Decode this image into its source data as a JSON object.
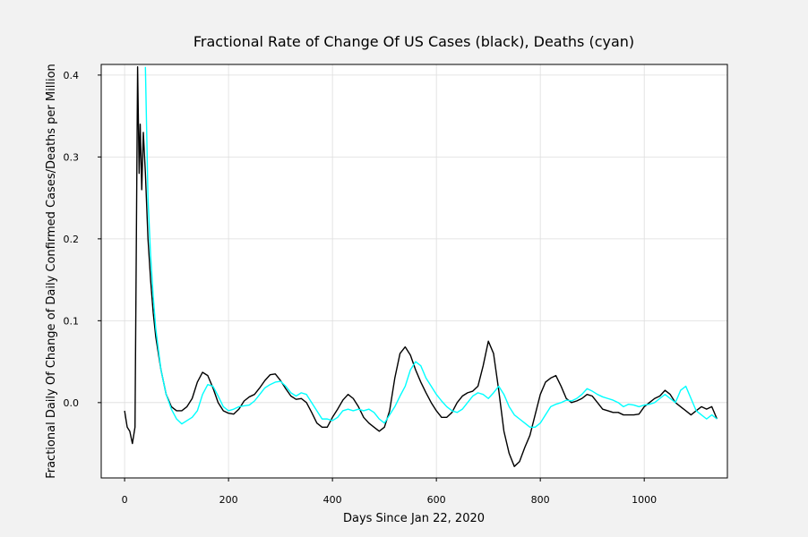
{
  "chart_data": {
    "type": "line",
    "title": "Fractional Rate of Change Of US Cases (black), Deaths (cyan)",
    "x_label": "Days Since Jan 22, 2020",
    "y_label": "Fractional Daily Of Change of Daily Confirmed Cases/Deaths per Million",
    "xlim": [
      -45,
      1160
    ],
    "ylim": [
      -0.092,
      0.413
    ],
    "xticks": [
      0,
      200,
      400,
      600,
      800,
      1000
    ],
    "yticks": [
      {
        "value": 0,
        "label": "0.0"
      },
      0.1,
      0.2,
      0.3,
      0.4
    ],
    "grid": true,
    "x": [
      0,
      5,
      10,
      15,
      20,
      25,
      28,
      30,
      33,
      36,
      40,
      45,
      50,
      55,
      60,
      70,
      80,
      90,
      100,
      110,
      120,
      130,
      140,
      150,
      160,
      170,
      180,
      190,
      200,
      210,
      220,
      230,
      240,
      250,
      260,
      270,
      280,
      290,
      300,
      310,
      320,
      330,
      340,
      350,
      360,
      370,
      380,
      390,
      400,
      410,
      420,
      430,
      440,
      450,
      460,
      470,
      480,
      490,
      500,
      510,
      520,
      530,
      540,
      550,
      560,
      570,
      580,
      590,
      600,
      610,
      620,
      630,
      640,
      650,
      660,
      670,
      680,
      690,
      700,
      710,
      720,
      730,
      740,
      750,
      760,
      770,
      780,
      790,
      800,
      810,
      820,
      830,
      840,
      850,
      860,
      870,
      880,
      890,
      900,
      910,
      920,
      930,
      940,
      950,
      960,
      970,
      980,
      990,
      1000,
      1010,
      1020,
      1030,
      1040,
      1050,
      1060,
      1070,
      1080,
      1090,
      1100,
      1110,
      1120,
      1130,
      1140
    ],
    "series": [
      {
        "color": "#000000",
        "values": [
          -0.01,
          -0.03,
          -0.035,
          -0.05,
          -0.03,
          0.41,
          0.28,
          0.34,
          0.26,
          0.33,
          0.28,
          0.2,
          0.15,
          0.11,
          0.08,
          0.04,
          0.01,
          -0.005,
          -0.01,
          -0.01,
          -0.005,
          0.005,
          0.025,
          0.037,
          0.033,
          0.018,
          0.0,
          -0.01,
          -0.013,
          -0.014,
          -0.008,
          0.002,
          0.007,
          0.01,
          0.018,
          0.027,
          0.034,
          0.035,
          0.027,
          0.017,
          0.008,
          0.004,
          0.005,
          0.0,
          -0.012,
          -0.025,
          -0.03,
          -0.03,
          -0.018,
          -0.008,
          0.003,
          0.01,
          0.005,
          -0.005,
          -0.018,
          -0.025,
          -0.03,
          -0.035,
          -0.03,
          -0.01,
          0.03,
          0.06,
          0.068,
          0.058,
          0.04,
          0.025,
          0.012,
          0.0,
          -0.01,
          -0.018,
          -0.018,
          -0.012,
          0.0,
          0.008,
          0.012,
          0.014,
          0.02,
          0.045,
          0.075,
          0.06,
          0.015,
          -0.035,
          -0.062,
          -0.078,
          -0.072,
          -0.055,
          -0.04,
          -0.015,
          0.01,
          0.025,
          0.03,
          0.033,
          0.02,
          0.005,
          0.0,
          0.002,
          0.005,
          0.01,
          0.008,
          0.0,
          -0.008,
          -0.01,
          -0.012,
          -0.012,
          -0.015,
          -0.015,
          -0.015,
          -0.014,
          -0.005,
          0.0,
          0.005,
          0.008,
          0.015,
          0.01,
          0.0,
          -0.005,
          -0.01,
          -0.015,
          -0.01,
          -0.005,
          -0.008,
          -0.005,
          -0.02
        ]
      },
      {
        "color": "#00ffff",
        "values": [
          null,
          null,
          null,
          null,
          null,
          null,
          null,
          null,
          null,
          null,
          0.41,
          0.25,
          0.18,
          0.13,
          0.09,
          0.04,
          0.01,
          -0.008,
          -0.02,
          -0.026,
          -0.022,
          -0.018,
          -0.01,
          0.01,
          0.022,
          0.02,
          0.008,
          -0.005,
          -0.01,
          -0.008,
          -0.005,
          -0.004,
          -0.003,
          0.002,
          0.01,
          0.018,
          0.022,
          0.025,
          0.026,
          0.02,
          0.012,
          0.008,
          0.012,
          0.01,
          0.0,
          -0.01,
          -0.02,
          -0.02,
          -0.022,
          -0.018,
          -0.01,
          -0.008,
          -0.01,
          -0.008,
          -0.01,
          -0.008,
          -0.012,
          -0.02,
          -0.025,
          -0.015,
          -0.005,
          0.008,
          0.02,
          0.04,
          0.05,
          0.045,
          0.03,
          0.02,
          0.01,
          0.002,
          -0.005,
          -0.01,
          -0.012,
          -0.008,
          0.0,
          0.008,
          0.012,
          0.01,
          0.005,
          0.012,
          0.02,
          0.01,
          -0.005,
          -0.015,
          -0.02,
          -0.025,
          -0.03,
          -0.03,
          -0.025,
          -0.015,
          -0.005,
          -0.002,
          0.0,
          0.003,
          0.002,
          0.005,
          0.01,
          0.017,
          0.014,
          0.01,
          0.007,
          0.005,
          0.003,
          0.0,
          -0.005,
          -0.002,
          -0.003,
          -0.005,
          -0.003,
          -0.002,
          0.0,
          0.005,
          0.01,
          0.005,
          0.0,
          0.015,
          0.02,
          0.005,
          -0.01,
          -0.015,
          -0.02,
          -0.015,
          -0.02
        ]
      }
    ]
  }
}
